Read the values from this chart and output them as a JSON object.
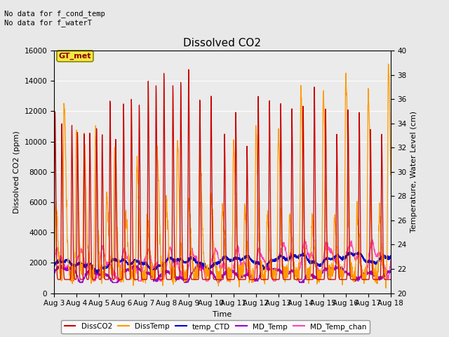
{
  "title": "Dissolved CO2",
  "xlabel": "Time",
  "ylabel_left": "Dissolved CO2 (ppm)",
  "ylabel_right": "Temperature, Water Level (cm)",
  "ylim_left": [
    0,
    16000
  ],
  "ylim_right": [
    20,
    40
  ],
  "xtick_labels": [
    "Aug 3",
    "Aug 4",
    "Aug 5",
    "Aug 6",
    "Aug 7",
    "Aug 8",
    "Aug 9",
    "Aug 10",
    "Aug 11",
    "Aug 12",
    "Aug 13",
    "Aug 14",
    "Aug 15",
    "Aug 16",
    "Aug 17",
    "Aug 18"
  ],
  "xtick_positions": [
    0,
    1,
    2,
    3,
    4,
    5,
    6,
    7,
    8,
    9,
    10,
    11,
    12,
    13,
    14,
    15
  ],
  "annotation_text": "No data for f_cond_temp\nNo data for f_waterT",
  "box_label": "GT_met",
  "box_color": "#f5e642",
  "box_text_color": "#880000",
  "background_color": "#e8e8e8",
  "plot_bg_color": "#ebebeb",
  "legend_entries": [
    "DissCO2",
    "DissTemp",
    "temp_CTD",
    "MD_Temp",
    "MD_Temp_chan"
  ],
  "co2_color": "#cc0000",
  "diss_temp_color": "#ff9900",
  "temp_ctd_color": "#0000cc",
  "md_temp_color": "#9900cc",
  "md_temp_chan_color": "#ff44bb",
  "yticks_left": [
    0,
    2000,
    4000,
    6000,
    8000,
    10000,
    12000,
    14000,
    16000
  ],
  "yticks_right": [
    20,
    22,
    24,
    26,
    28,
    30,
    32,
    34,
    36,
    38,
    40
  ]
}
